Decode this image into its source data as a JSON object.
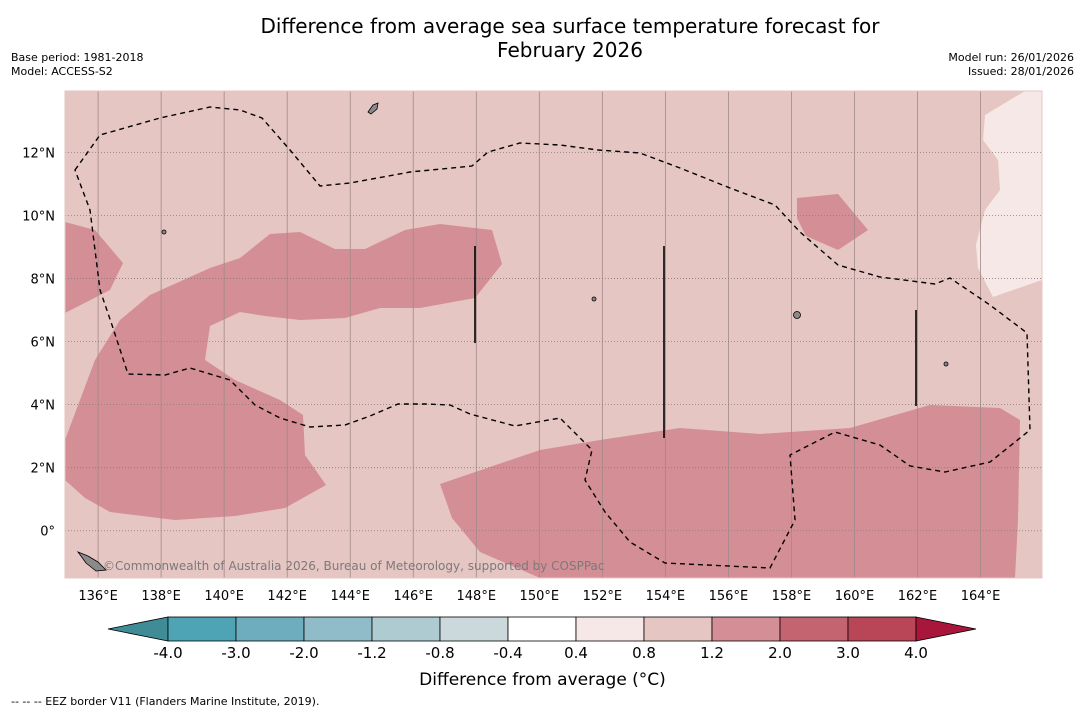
{
  "header": {
    "title_line1": "Difference from average sea surface temperature forecast for",
    "title_line2": "February 2026",
    "base_period": "Base period: 1981-2018",
    "model": "Model: ACCESS-S2",
    "model_run": "Model run: 26/01/2026",
    "issued": "Issued: 28/01/2026"
  },
  "map": {
    "longitude_labels": [
      "136°E",
      "138°E",
      "140°E",
      "142°E",
      "144°E",
      "146°E",
      "148°E",
      "150°E",
      "152°E",
      "154°E",
      "156°E",
      "158°E",
      "160°E",
      "162°E",
      "164°E"
    ],
    "longitude_values": [
      136,
      138,
      140,
      142,
      144,
      146,
      148,
      150,
      152,
      154,
      156,
      158,
      160,
      162,
      164
    ],
    "latitude_labels": [
      "12°N",
      "10°N",
      "8°N",
      "6°N",
      "4°N",
      "2°N",
      "0°"
    ],
    "latitude_values": [
      12,
      10,
      8,
      6,
      4,
      2,
      0
    ],
    "lon_range": [
      134.95,
      165.95
    ],
    "lat_range": [
      -1.5,
      13.95
    ],
    "attribution": "©Commonwealth of Australia 2026, Bureau of Meteorology, supported by COSPPac",
    "background_class_color": "#e6c6c2",
    "warm_class_color": "#d48e96",
    "cool_class_color": "#f6e8e6"
  },
  "colorbar": {
    "tick_labels": [
      "-4.0",
      "-3.0",
      "-2.0",
      "-1.2",
      "-0.8",
      "-0.4",
      "0.4",
      "0.8",
      "1.2",
      "2.0",
      "3.0",
      "4.0"
    ],
    "colors": [
      "#3f8c97",
      "#4ea3b5",
      "#6eadbd",
      "#8fbcc8",
      "#adcbd1",
      "#cbd9dd",
      "#ffffff",
      "#f6e8e6",
      "#e6c6c2",
      "#d48e96",
      "#c46470",
      "#b94656",
      "#a8173b"
    ],
    "label": "Difference from average (°C)"
  },
  "legend": {
    "footnote": "--  --  -- EEZ border V11 (Flanders Marine Institute, 2019)."
  }
}
